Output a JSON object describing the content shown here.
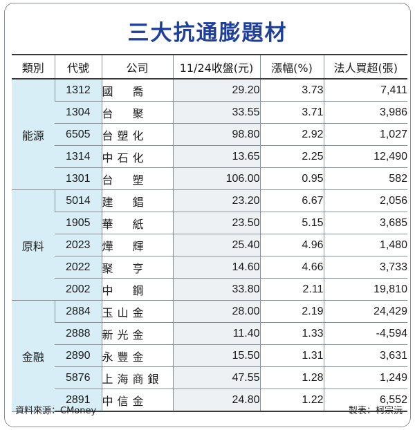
{
  "title": "三大抗通膨題材",
  "headers": {
    "category": "類別",
    "code": "代號",
    "company": "公司",
    "close": "11/24收盤(元)",
    "change": "漲幅(%)",
    "institutional": "法人買超(張)"
  },
  "groups": [
    {
      "category": "能源",
      "rows": [
        {
          "code": "1312",
          "company": "國　喬",
          "close": "29.20",
          "change": "3.73",
          "institutional": "7,411"
        },
        {
          "code": "1304",
          "company": "台　聚",
          "close": "33.55",
          "change": "3.71",
          "institutional": "3,986"
        },
        {
          "code": "6505",
          "company": "台塑化",
          "close": "98.80",
          "change": "2.92",
          "institutional": "1,027"
        },
        {
          "code": "1314",
          "company": "中石化",
          "close": "13.65",
          "change": "2.25",
          "institutional": "12,490"
        },
        {
          "code": "1301",
          "company": "台　塑",
          "close": "106.00",
          "change": "0.95",
          "institutional": "582"
        }
      ]
    },
    {
      "category": "原料",
      "rows": [
        {
          "code": "5014",
          "company": "建　錩",
          "close": "23.20",
          "change": "6.67",
          "institutional": "2,056"
        },
        {
          "code": "1905",
          "company": "華　紙",
          "close": "23.50",
          "change": "5.15",
          "institutional": "3,685"
        },
        {
          "code": "2023",
          "company": "燁　輝",
          "close": "25.40",
          "change": "4.96",
          "institutional": "1,480"
        },
        {
          "code": "2022",
          "company": "聚　亨",
          "close": "14.60",
          "change": "4.66",
          "institutional": "3,733"
        },
        {
          "code": "2002",
          "company": "中　鋼",
          "close": "33.80",
          "change": "2.11",
          "institutional": "19,810"
        }
      ]
    },
    {
      "category": "金融",
      "rows": [
        {
          "code": "2884",
          "company": "玉山金",
          "close": "28.00",
          "change": "2.19",
          "institutional": "24,429"
        },
        {
          "code": "2888",
          "company": "新光金",
          "close": "11.40",
          "change": "1.33",
          "institutional": "-4,594"
        },
        {
          "code": "2890",
          "company": "永豐金",
          "close": "15.50",
          "change": "1.31",
          "institutional": "3,631"
        },
        {
          "code": "5876",
          "company": "上海商銀",
          "close": "47.55",
          "change": "1.28",
          "institutional": "1,249"
        },
        {
          "code": "2891",
          "company": "中信金",
          "close": "24.80",
          "change": "1.22",
          "institutional": "6,552"
        }
      ]
    }
  ],
  "footer": {
    "source": "資料來源：CMoney",
    "credit": "製表：柯宗沅"
  }
}
